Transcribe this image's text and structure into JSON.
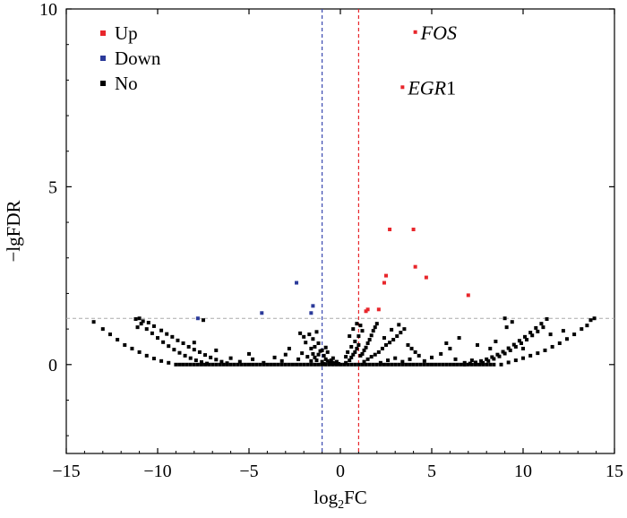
{
  "chart_data": {
    "type": "scatter",
    "xlabel": {
      "main": "log",
      "sub": "2",
      "rest": "FC"
    },
    "ylabel": "−lgFDR",
    "xlim": [
      -15,
      15
    ],
    "ylim": [
      -2.5,
      10
    ],
    "xticks": [
      -15,
      -10,
      -5,
      0,
      5,
      10,
      15
    ],
    "xtick_labels": [
      "−15",
      "−10",
      "−5",
      "0",
      "5",
      "10",
      "15"
    ],
    "yticks": [
      0,
      5,
      10
    ],
    "ytick_labels": [
      "0",
      "5",
      "10"
    ],
    "thresholds": {
      "fc_low": -1,
      "fc_high": 1,
      "neg_log_fdr": 1.3
    },
    "colors": {
      "up": "#e8262b",
      "down": "#2b3a9a",
      "no": "#000000",
      "vline_low": "#3a49b0",
      "vline_high": "#e8262b",
      "hline": "#aaaaaa"
    },
    "legend": [
      {
        "key": "up",
        "label": "Up"
      },
      {
        "key": "down",
        "label": "Down"
      },
      {
        "key": "no",
        "label": "No"
      }
    ],
    "annotations": [
      {
        "italic": "FOS",
        "normal": "",
        "x": 4.1,
        "y": 9.35
      },
      {
        "italic": "EGR",
        "normal": "1",
        "x": 3.4,
        "y": 7.8
      }
    ],
    "series": [
      {
        "name": "Up",
        "color_key": "up",
        "points": [
          [
            4.1,
            9.35
          ],
          [
            3.4,
            7.8
          ],
          [
            2.7,
            3.8
          ],
          [
            4.0,
            3.8
          ],
          [
            4.1,
            2.75
          ],
          [
            4.7,
            2.45
          ],
          [
            2.5,
            2.5
          ],
          [
            2.4,
            2.3
          ],
          [
            7.0,
            1.95
          ],
          [
            1.5,
            1.55
          ],
          [
            1.4,
            1.5
          ],
          [
            2.1,
            1.55
          ]
        ]
      },
      {
        "name": "Down",
        "color_key": "down",
        "points": [
          [
            -2.4,
            2.3
          ],
          [
            -1.5,
            1.65
          ],
          [
            -1.6,
            1.45
          ],
          [
            -4.3,
            1.45
          ],
          [
            -7.8,
            1.3
          ]
        ]
      },
      {
        "name": "No",
        "color_key": "no",
        "points": [
          [
            -13.5,
            1.2
          ],
          [
            -13.0,
            1.0
          ],
          [
            -12.6,
            0.85
          ],
          [
            -12.2,
            0.7
          ],
          [
            -11.8,
            0.55
          ],
          [
            -11.4,
            0.45
          ],
          [
            -11.0,
            0.35
          ],
          [
            -10.6,
            0.25
          ],
          [
            -10.2,
            0.17
          ],
          [
            -9.8,
            0.1
          ],
          [
            -9.4,
            0.05
          ],
          [
            -9.0,
            0.0
          ],
          [
            -11.2,
            1.28
          ],
          [
            -10.9,
            1.15
          ],
          [
            -10.6,
            1.0
          ],
          [
            -10.3,
            0.88
          ],
          [
            -10.0,
            0.75
          ],
          [
            -9.7,
            0.63
          ],
          [
            -9.4,
            0.52
          ],
          [
            -9.1,
            0.42
          ],
          [
            -8.8,
            0.33
          ],
          [
            -8.5,
            0.25
          ],
          [
            -8.2,
            0.18
          ],
          [
            -7.9,
            0.12
          ],
          [
            -7.6,
            0.07
          ],
          [
            -7.3,
            0.03
          ],
          [
            -11.0,
            1.3
          ],
          [
            -10.8,
            1.22
          ],
          [
            -10.5,
            1.18
          ],
          [
            -10.2,
            1.08
          ],
          [
            -9.8,
            0.96
          ],
          [
            -9.5,
            0.86
          ],
          [
            -9.2,
            0.78
          ],
          [
            -8.9,
            0.68
          ],
          [
            -8.6,
            0.6
          ],
          [
            -8.3,
            0.5
          ],
          [
            -8.0,
            0.42
          ],
          [
            -7.7,
            0.35
          ],
          [
            -7.4,
            0.27
          ],
          [
            -7.1,
            0.2
          ],
          [
            -6.8,
            0.14
          ],
          [
            -6.5,
            0.08
          ],
          [
            -6.2,
            0.04
          ],
          [
            -11.1,
            1.05
          ],
          [
            -7.5,
            1.25
          ],
          [
            -8.0,
            0.62
          ],
          [
            -6.8,
            0.4
          ],
          [
            -5.0,
            0.3
          ],
          [
            -4.8,
            0.15
          ],
          [
            -3.6,
            0.2
          ],
          [
            -3.0,
            0.28
          ],
          [
            -2.8,
            0.45
          ],
          [
            -3.2,
            0.1
          ],
          [
            -4.2,
            0.05
          ],
          [
            -6.0,
            0.18
          ],
          [
            -5.5,
            0.08
          ],
          [
            -2.2,
            0.88
          ],
          [
            -2.0,
            0.78
          ],
          [
            -1.9,
            0.62
          ],
          [
            -1.7,
            0.85
          ],
          [
            -1.6,
            0.45
          ],
          [
            -1.5,
            0.3
          ],
          [
            -1.4,
            0.2
          ],
          [
            -1.3,
            0.12
          ],
          [
            -1.2,
            0.6
          ],
          [
            -1.1,
            0.38
          ],
          [
            -1.0,
            0.08
          ],
          [
            -0.9,
            0.25
          ],
          [
            -0.8,
            0.15
          ],
          [
            -0.7,
            0.35
          ],
          [
            -0.6,
            0.05
          ],
          [
            -0.5,
            0.12
          ],
          [
            -0.4,
            0.18
          ],
          [
            -0.3,
            0.03
          ],
          [
            -0.2,
            0.08
          ],
          [
            -0.1,
            0.02
          ],
          [
            -2.3,
            0.15
          ],
          [
            -2.1,
            0.32
          ],
          [
            -1.8,
            0.22
          ],
          [
            -1.6,
            0.1
          ],
          [
            -1.4,
            0.5
          ],
          [
            -1.2,
            0.28
          ],
          [
            -1.0,
            0.4
          ],
          [
            -0.9,
            0.02
          ],
          [
            -0.8,
            0.48
          ],
          [
            -0.7,
            0.1
          ],
          [
            -0.5,
            0.02
          ],
          [
            -0.4,
            0.05
          ],
          [
            -1.5,
            0.72
          ],
          [
            -1.3,
            0.92
          ],
          [
            0.3,
            0.05
          ],
          [
            0.5,
            0.12
          ],
          [
            0.6,
            0.2
          ],
          [
            0.7,
            0.28
          ],
          [
            0.8,
            0.35
          ],
          [
            0.9,
            0.45
          ],
          [
            1.0,
            0.55
          ],
          [
            1.1,
            0.25
          ],
          [
            1.2,
            0.3
          ],
          [
            1.3,
            0.4
          ],
          [
            1.4,
            0.48
          ],
          [
            1.5,
            0.6
          ],
          [
            1.6,
            0.7
          ],
          [
            1.7,
            0.82
          ],
          [
            1.8,
            0.95
          ],
          [
            1.9,
            1.05
          ],
          [
            2.0,
            1.15
          ],
          [
            1.3,
            0.08
          ],
          [
            1.5,
            0.15
          ],
          [
            1.7,
            0.22
          ],
          [
            1.9,
            0.28
          ],
          [
            2.1,
            0.35
          ],
          [
            2.3,
            0.45
          ],
          [
            2.5,
            0.55
          ],
          [
            2.7,
            0.62
          ],
          [
            2.9,
            0.7
          ],
          [
            3.1,
            0.8
          ],
          [
            3.3,
            0.9
          ],
          [
            3.5,
            1.0
          ],
          [
            3.7,
            0.55
          ],
          [
            3.9,
            0.45
          ],
          [
            4.1,
            0.35
          ],
          [
            4.3,
            0.25
          ],
          [
            2.2,
            0.05
          ],
          [
            2.6,
            0.12
          ],
          [
            3.0,
            0.18
          ],
          [
            3.4,
            0.08
          ],
          [
            3.8,
            0.15
          ],
          [
            4.6,
            0.1
          ],
          [
            5.0,
            0.2
          ],
          [
            5.5,
            0.3
          ],
          [
            6.0,
            0.45
          ],
          [
            6.3,
            0.15
          ],
          [
            6.8,
            0.05
          ],
          [
            7.2,
            0.12
          ],
          [
            5.8,
            0.6
          ],
          [
            6.5,
            0.75
          ],
          [
            0.4,
            0.35
          ],
          [
            0.6,
            0.5
          ],
          [
            0.8,
            0.65
          ],
          [
            1.0,
            0.8
          ],
          [
            1.2,
            0.95
          ],
          [
            0.5,
            0.8
          ],
          [
            0.7,
            1.0
          ],
          [
            0.9,
            1.15
          ],
          [
            0.3,
            0.22
          ],
          [
            1.1,
            1.1
          ],
          [
            2.4,
            0.75
          ],
          [
            2.8,
            0.98
          ],
          [
            3.2,
            1.12
          ],
          [
            6.8,
            0.0
          ],
          [
            7.1,
            0.03
          ],
          [
            7.4,
            0.06
          ],
          [
            7.7,
            0.1
          ],
          [
            8.0,
            0.15
          ],
          [
            8.3,
            0.21
          ],
          [
            8.6,
            0.28
          ],
          [
            8.9,
            0.36
          ],
          [
            9.2,
            0.46
          ],
          [
            9.5,
            0.56
          ],
          [
            9.8,
            0.67
          ],
          [
            10.1,
            0.78
          ],
          [
            10.4,
            0.9
          ],
          [
            10.7,
            1.03
          ],
          [
            11.0,
            1.15
          ],
          [
            11.3,
            1.28
          ],
          [
            7.8,
            0.05
          ],
          [
            8.1,
            0.1
          ],
          [
            8.4,
            0.16
          ],
          [
            8.7,
            0.23
          ],
          [
            9.0,
            0.31
          ],
          [
            9.3,
            0.4
          ],
          [
            9.6,
            0.5
          ],
          [
            9.9,
            0.6
          ],
          [
            10.2,
            0.7
          ],
          [
            10.5,
            0.82
          ],
          [
            10.8,
            0.93
          ],
          [
            11.1,
            1.05
          ],
          [
            8.8,
            0.0
          ],
          [
            9.2,
            0.06
          ],
          [
            9.6,
            0.12
          ],
          [
            10.0,
            0.18
          ],
          [
            10.4,
            0.25
          ],
          [
            10.8,
            0.32
          ],
          [
            11.2,
            0.4
          ],
          [
            11.6,
            0.5
          ],
          [
            12.0,
            0.6
          ],
          [
            12.4,
            0.72
          ],
          [
            12.8,
            0.85
          ],
          [
            13.2,
            1.0
          ],
          [
            13.5,
            1.1
          ],
          [
            13.7,
            1.25
          ],
          [
            13.9,
            1.3
          ],
          [
            9.0,
            1.3
          ],
          [
            9.4,
            1.2
          ],
          [
            9.1,
            1.05
          ],
          [
            8.5,
            0.65
          ],
          [
            8.2,
            0.45
          ],
          [
            7.5,
            0.55
          ],
          [
            11.5,
            0.85
          ],
          [
            12.2,
            0.95
          ],
          [
            10.0,
            0.45
          ]
        ]
      }
    ]
  }
}
